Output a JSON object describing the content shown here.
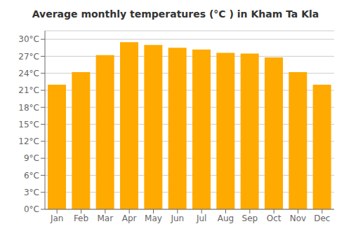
{
  "chart_data": {
    "type": "bar",
    "title": "Average monthly temperatures (°C ) in Kham Ta Kla",
    "categories": [
      "Jan",
      "Feb",
      "Mar",
      "Apr",
      "May",
      "Jun",
      "Jul",
      "Aug",
      "Sep",
      "Oct",
      "Nov",
      "Dec"
    ],
    "values": [
      22.0,
      24.2,
      27.2,
      29.5,
      29.0,
      28.5,
      28.2,
      27.6,
      27.5,
      26.8,
      24.2,
      22.0
    ],
    "color": "#FFAA00",
    "ylim": [
      0,
      31.5
    ],
    "yticks": [
      {
        "value": 0,
        "label": "0°C"
      },
      {
        "value": 3,
        "label": "3°C"
      },
      {
        "value": 6,
        "label": "6°C"
      },
      {
        "value": 9,
        "label": "9°C"
      },
      {
        "value": 12,
        "label": "12°C"
      },
      {
        "value": 15,
        "label": "15°C"
      },
      {
        "value": 18,
        "label": "18°C"
      },
      {
        "value": 21,
        "label": "21°C"
      },
      {
        "value": 24,
        "label": "24°C"
      },
      {
        "value": 27,
        "label": "27°C"
      },
      {
        "value": 30,
        "label": "30°C"
      }
    ],
    "grid": true
  }
}
